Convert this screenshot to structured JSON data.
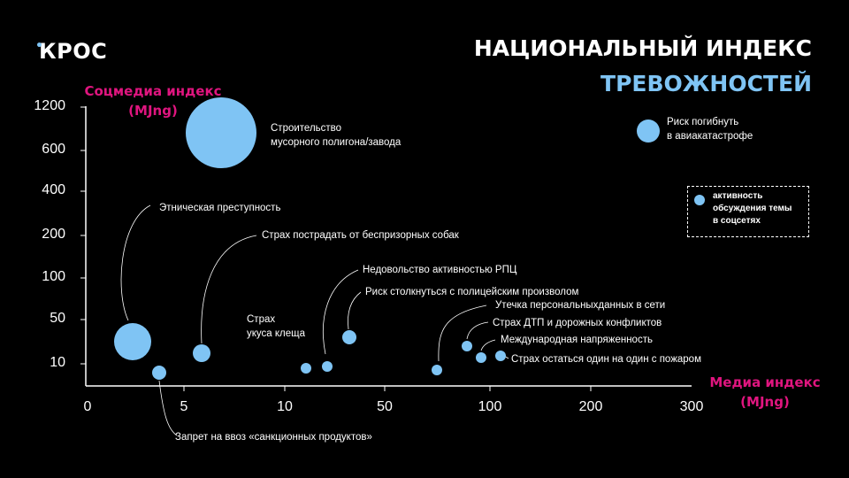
{
  "logo": {
    "text": "КРОС",
    "dot": "•"
  },
  "header": {
    "title_line1": "НАЦИОНАЛЬНЫЙ ИНДЕКС",
    "title_line2": "ТРЕВОЖНОСТЕЙ"
  },
  "colors": {
    "background": "#000000",
    "bubble": "#7fc4f4",
    "accent_pink": "#e0157f",
    "accent_blue": "#7fc4f4",
    "text": "#ffffff"
  },
  "legend": {
    "text_line1": "активность",
    "text_line2": "обсуждения темы",
    "text_line3": "в соцсетях",
    "bubble_example_label": "Риск погибнуть\nв авиакатастрофе"
  },
  "chart_data": {
    "type": "scatter",
    "ylabel_line1": "Соцмедиа индекс",
    "ylabel_line2": "(MJng)",
    "xlabel_line1": "Медиа индекс",
    "xlabel_line2": "(MJng)",
    "x_ticks": [
      "0",
      "5",
      "10",
      "50",
      "100",
      "200",
      "300"
    ],
    "y_ticks": [
      "1200",
      "600",
      "400",
      "200",
      "100",
      "50",
      "10"
    ],
    "grid": false,
    "points": [
      {
        "label": "Этническая преступность",
        "x": 2,
        "y": 30,
        "size": 21
      },
      {
        "label": "Запрет на ввоз «санкционных продуктов»",
        "x": 3.5,
        "y": 5,
        "size": 8
      },
      {
        "label": "Страх пострадать от беспризорных собак",
        "x": 6,
        "y": 15,
        "size": 10
      },
      {
        "label": "Строительство\nмусорного полигона/завода",
        "x": 7,
        "y": 900,
        "size": 40
      },
      {
        "label": "Страх\nукуса клеща",
        "x": 15,
        "y": 8,
        "size": 6
      },
      {
        "label": "",
        "x": 20,
        "y": 9,
        "size": 6
      },
      {
        "label": "Недовольство активностью РПЦ",
        "x": 30,
        "y": 33,
        "size": 8
      },
      {
        "label": "Риск столкнуться с полицейским произволом",
        "x": 30,
        "y": 33,
        "size": 0
      },
      {
        "label": "Утечка персональныхданных в сети",
        "x": 75,
        "y": 7,
        "size": 6
      },
      {
        "label": "Страх ДТП и дорожных конфликтов",
        "x": 88,
        "y": 22,
        "size": 6
      },
      {
        "label": "Международная напряженность",
        "x": 95,
        "y": 12,
        "size": 6
      },
      {
        "label": "Страх остаться один на один с пожаром",
        "x": 110,
        "y": 12,
        "size": 6
      }
    ]
  }
}
